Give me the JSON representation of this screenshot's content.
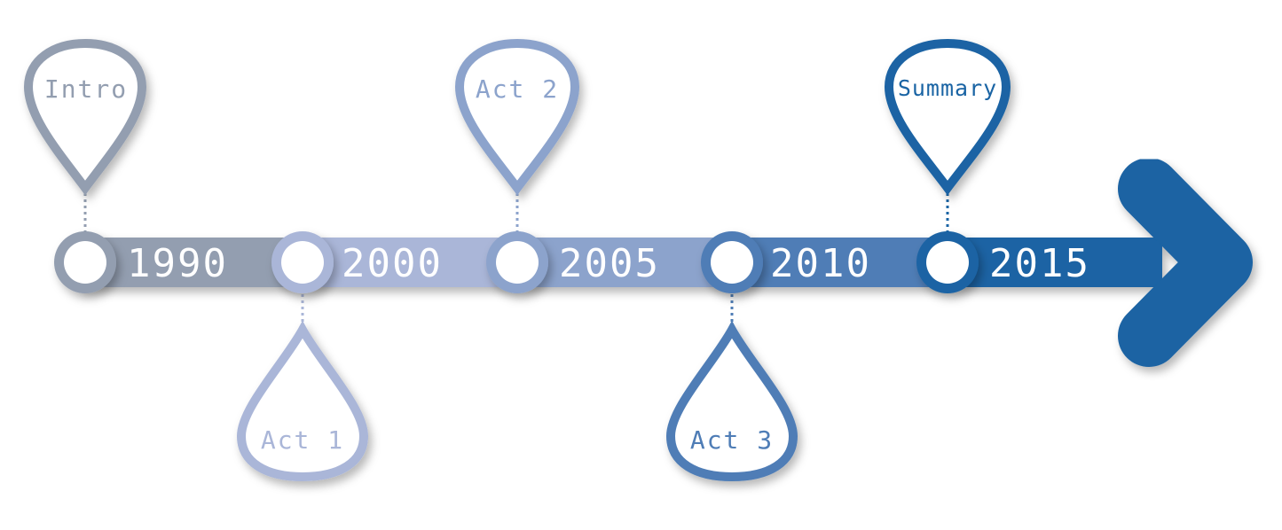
{
  "milestones": [
    {
      "year": "1990",
      "label": "Intro",
      "color": "#939eb0"
    },
    {
      "year": "2000",
      "label": "Act 1",
      "color": "#aab6d8"
    },
    {
      "year": "2005",
      "label": "Act 2",
      "color": "#8ca3cc"
    },
    {
      "year": "2010",
      "label": "Act 3",
      "color": "#4f7db6"
    },
    {
      "year": "2015",
      "label": "Summary",
      "color": "#1a64a4"
    }
  ],
  "colors": {
    "arrow": "#1b63a3",
    "background": "#ffffff"
  }
}
